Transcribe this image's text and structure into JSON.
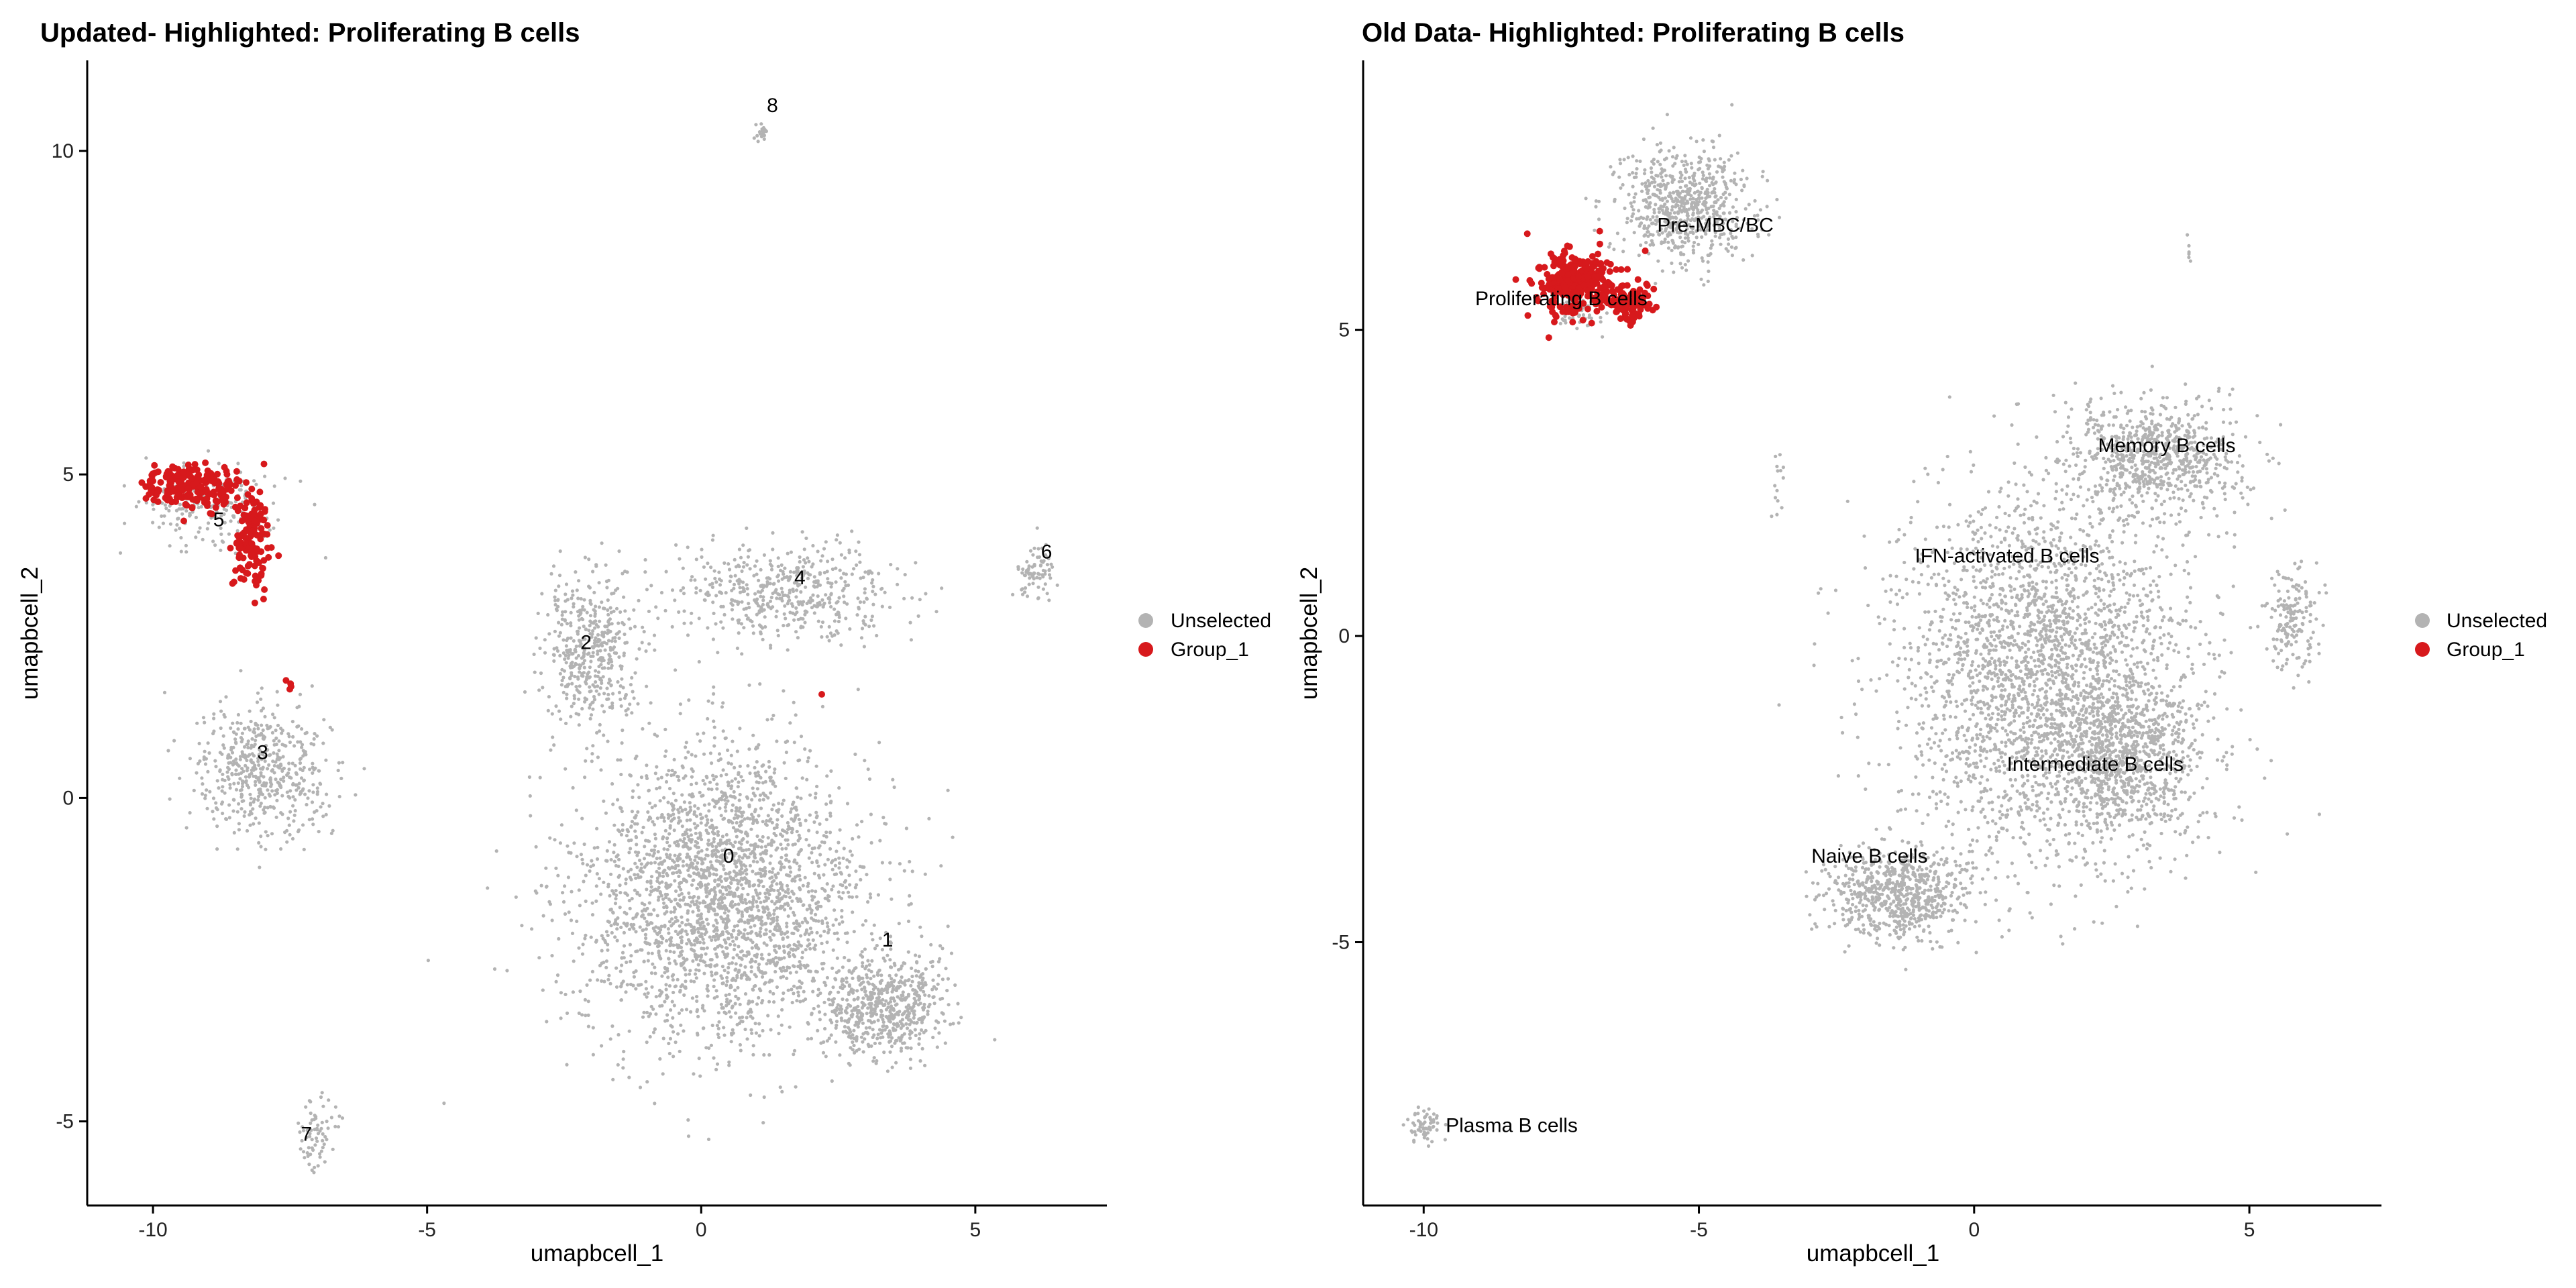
{
  "chart_data": [
    {
      "type": "scatter",
      "title": "Updated- Highlighted: Proliferating B cells",
      "xlabel": "umapbcell_1",
      "ylabel": "umapbcell_2",
      "xlim": [
        -11.2,
        7.4
      ],
      "ylim": [
        -6.3,
        11.4
      ],
      "xticks": [
        -10,
        -5,
        0,
        5
      ],
      "yticks": [
        -5,
        0,
        5,
        10
      ],
      "grid": false,
      "legend": {
        "position": "right",
        "entries": [
          {
            "label": "Unselected",
            "color": "#b3b3b3"
          },
          {
            "label": "Group_1",
            "color": "#d7191c"
          }
        ]
      },
      "series": [
        {
          "name": "Unselected",
          "color": "#b3b3b3",
          "clusters": [
            {
              "center": [
                0.4,
                -1.5
              ],
              "spread": [
                2.6,
                2.3
              ],
              "n": 2600
            },
            {
              "center": [
                3.3,
                -3.2
              ],
              "spread": [
                1.1,
                0.8
              ],
              "n": 600
            },
            {
              "center": [
                1.6,
                3.2
              ],
              "spread": [
                2.1,
                0.7
              ],
              "n": 500
            },
            {
              "center": [
                -2.0,
                2.3
              ],
              "spread": [
                0.9,
                1.1
              ],
              "n": 450
            },
            {
              "center": [
                -8.0,
                0.4
              ],
              "spread": [
                1.2,
                1.0
              ],
              "n": 520
            },
            {
              "center": [
                -8.9,
                4.5
              ],
              "spread": [
                1.3,
                0.6
              ],
              "n": 200
            },
            {
              "center": [
                6.1,
                3.5
              ],
              "spread": [
                0.35,
                0.45
              ],
              "n": 80
            },
            {
              "center": [
                -7.0,
                -5.2
              ],
              "spread": [
                0.35,
                0.55
              ],
              "n": 70
            },
            {
              "center": [
                1.1,
                10.3
              ],
              "spread": [
                0.1,
                0.12
              ],
              "n": 18
            }
          ]
        },
        {
          "name": "Group_1",
          "color": "#d7191c",
          "clusters": [
            {
              "center": [
                -9.3,
                4.8
              ],
              "spread": [
                0.85,
                0.35
              ],
              "n": 200
            },
            {
              "center": [
                -8.2,
                4.0
              ],
              "spread": [
                0.35,
                0.75
              ],
              "n": 130
            },
            {
              "center": [
                -7.5,
                1.6
              ],
              "spread": [
                0.06,
                0.3
              ],
              "n": 4
            },
            {
              "center": [
                2.2,
                1.6
              ],
              "spread": [
                0.02,
                0.02
              ],
              "n": 1
            }
          ]
        }
      ],
      "labels": [
        {
          "text": "0",
          "x": 0.5,
          "y": -1.0
        },
        {
          "text": "1",
          "x": 3.4,
          "y": -2.3
        },
        {
          "text": "2",
          "x": -2.1,
          "y": 2.3
        },
        {
          "text": "3",
          "x": -8.0,
          "y": 0.6
        },
        {
          "text": "4",
          "x": 1.8,
          "y": 3.3
        },
        {
          "text": "5",
          "x": -8.8,
          "y": 4.2
        },
        {
          "text": "6",
          "x": 6.3,
          "y": 3.7
        },
        {
          "text": "7",
          "x": -7.2,
          "y": -5.3
        },
        {
          "text": "8",
          "x": 1.3,
          "y": 10.6
        }
      ]
    },
    {
      "type": "scatter",
      "title": "Old Data- Highlighted: Proliferating B cells",
      "xlabel": "umapbcell_1",
      "ylabel": "umapbcell_2",
      "xlim": [
        -11.1,
        7.4
      ],
      "ylim": [
        -9.3,
        9.4
      ],
      "xticks": [
        -10,
        -5,
        0,
        5
      ],
      "yticks": [
        -5,
        0,
        5
      ],
      "grid": false,
      "legend": {
        "position": "right",
        "entries": [
          {
            "label": "Unselected",
            "color": "#b3b3b3"
          },
          {
            "label": "Group_1",
            "color": "#d7191c"
          }
        ]
      },
      "series": [
        {
          "name": "Unselected",
          "color": "#b3b3b3",
          "clusters": [
            {
              "center": [
                -5.3,
                7.0
              ],
              "spread": [
                1.2,
                0.95
              ],
              "n": 650
            },
            {
              "center": [
                -7.2,
                5.3
              ],
              "spread": [
                0.5,
                0.3
              ],
              "n": 60
            },
            {
              "center": [
                -1.4,
                -4.2
              ],
              "spread": [
                1.3,
                0.7
              ],
              "n": 700
            },
            {
              "center": [
                1.2,
                -0.6
              ],
              "spread": [
                2.7,
                3.0
              ],
              "n": 2600
            },
            {
              "center": [
                2.7,
                -2.0
              ],
              "spread": [
                1.4,
                1.3
              ],
              "n": 800
            },
            {
              "center": [
                3.3,
                2.9
              ],
              "spread": [
                1.6,
                0.9
              ],
              "n": 750
            },
            {
              "center": [
                5.8,
                0.3
              ],
              "spread": [
                0.45,
                0.9
              ],
              "n": 160
            },
            {
              "center": [
                -10.0,
                -8.0
              ],
              "spread": [
                0.35,
                0.3
              ],
              "n": 60
            },
            {
              "center": [
                -3.6,
                2.4
              ],
              "spread": [
                0.15,
                0.7
              ],
              "n": 14
            },
            {
              "center": [
                3.9,
                6.3
              ],
              "spread": [
                0.05,
                0.2
              ],
              "n": 6
            }
          ]
        },
        {
          "name": "Group_1",
          "color": "#d7191c",
          "clusters": [
            {
              "center": [
                -7.2,
                5.75
              ],
              "spread": [
                0.75,
                0.55
              ],
              "n": 300
            },
            {
              "center": [
                -6.2,
                5.4
              ],
              "spread": [
                0.4,
                0.35
              ],
              "n": 70
            }
          ]
        }
      ],
      "labels": [
        {
          "text": "Pre-MBC/BC",
          "x": -4.7,
          "y": 6.6
        },
        {
          "text": "Proliferating B cells",
          "x": -7.5,
          "y": 5.4
        },
        {
          "text": "Memory B cells",
          "x": 3.5,
          "y": 3.0
        },
        {
          "text": "IFN-activated B cells",
          "x": 0.6,
          "y": 1.2
        },
        {
          "text": "Intermediate B cells",
          "x": 2.2,
          "y": -2.2
        },
        {
          "text": "Naive B cells",
          "x": -1.9,
          "y": -3.7
        },
        {
          "text": "Plasma B cells",
          "x": -8.4,
          "y": -8.1
        }
      ]
    }
  ]
}
